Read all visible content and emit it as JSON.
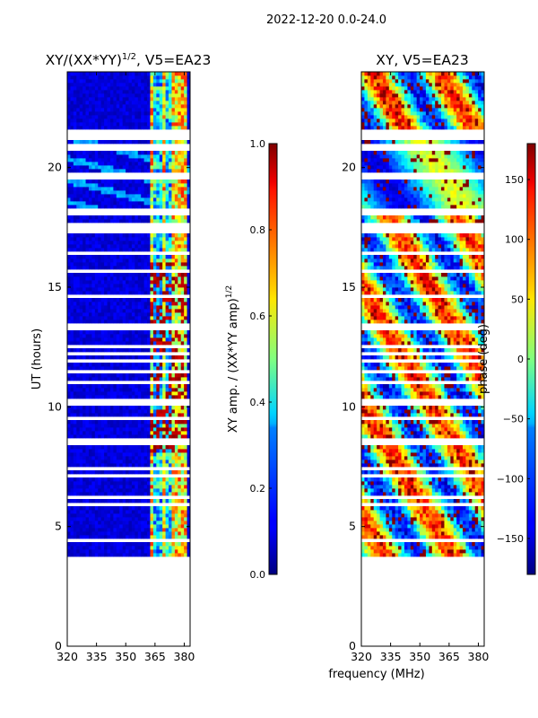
{
  "suptitle": "2022-12-20 0.0-24.0",
  "xlabel": "frequency (MHz)",
  "chart_data": [
    {
      "type": "heatmap",
      "id": "amp",
      "title_text": "XY/(XX*YY)",
      "title_sup": "1/2",
      "title_tail": ", V5=EA23",
      "xlabel": "",
      "ylabel": "UT (hours)",
      "xlim": [
        320,
        383
      ],
      "ylim": [
        0,
        24
      ],
      "xticks": [
        320,
        335,
        350,
        365,
        380
      ],
      "yticks": [
        0,
        5,
        10,
        15,
        20
      ],
      "data_start_hour": 3.75,
      "data_end_hour": 24.0,
      "colorbar": {
        "label_text": "XY amp. / (XX*YY amp)",
        "label_sup": "1/2",
        "range": [
          0.0,
          1.0
        ],
        "ticks": [
          "0.0",
          "0.2",
          "0.4",
          "0.6",
          "0.8",
          "1.0"
        ],
        "colormap": "jet"
      }
    },
    {
      "type": "heatmap",
      "id": "phase",
      "title_text": "XY, V5=EA23",
      "xlabel": "",
      "ylabel": "",
      "xlim": [
        320,
        383
      ],
      "ylim": [
        0,
        24
      ],
      "xticks": [
        320,
        335,
        350,
        365,
        380
      ],
      "yticks": [
        0,
        5,
        10,
        15,
        20
      ],
      "data_start_hour": 3.75,
      "data_end_hour": 24.0,
      "colorbar": {
        "label_text": "phase (deg)",
        "range": [
          -180,
          180
        ],
        "ticks": [
          "−150",
          "−100",
          "−50",
          "0",
          "50",
          "100",
          "150"
        ],
        "colormap": "jet"
      }
    }
  ]
}
